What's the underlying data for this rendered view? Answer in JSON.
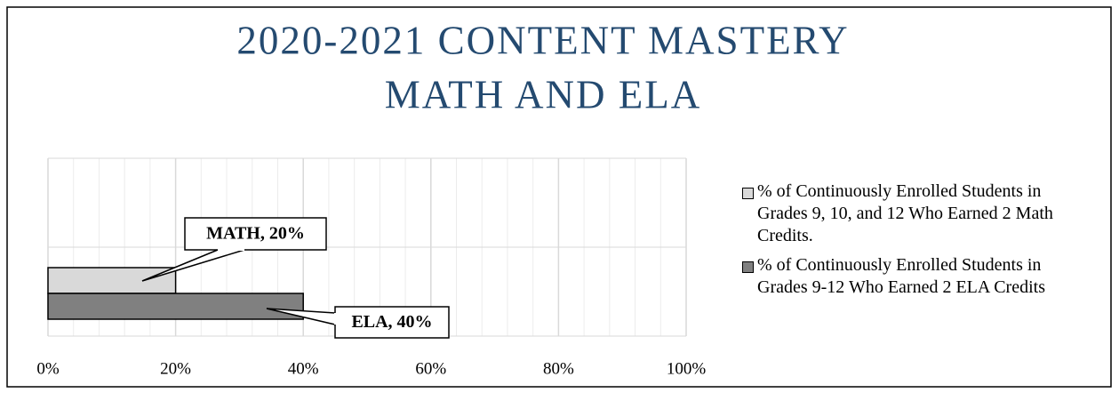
{
  "chart_data": {
    "type": "hbar",
    "title": [
      "2020-2021 CONTENT MASTERY",
      "MATH AND ELA"
    ],
    "categories": [
      null
    ],
    "series": [
      {
        "name": "% of Continuously Enrolled Students in Grades 9, 10, and 12 Who Earned 2 Math Credits.",
        "color": "#d9d9d9",
        "values": [
          20
        ],
        "value_labels": [
          "MATH, 20%"
        ]
      },
      {
        "name": "% of Continuously Enrolled Students in Grades 9-12 Who Earned 2 ELA Credits",
        "color": "#808080",
        "values": [
          40
        ],
        "value_labels": [
          "ELA, 40%"
        ]
      }
    ],
    "xlim": [
      0,
      100
    ],
    "xticks": [
      {
        "value": 0,
        "label": "0%"
      },
      {
        "value": 20,
        "label": "20%"
      },
      {
        "value": 40,
        "label": "40%"
      },
      {
        "value": 60,
        "label": "60%"
      },
      {
        "value": 80,
        "label": "80%"
      },
      {
        "value": 100,
        "label": "100%"
      }
    ],
    "grid": true,
    "minor_grid": true,
    "legend": "right"
  }
}
